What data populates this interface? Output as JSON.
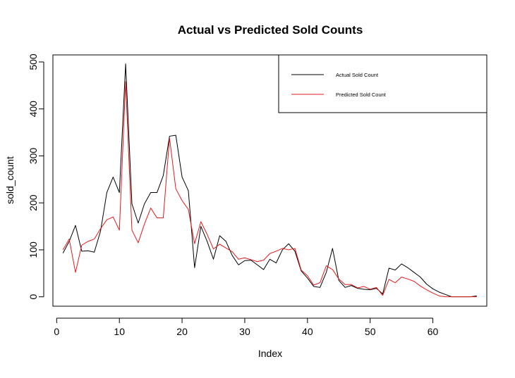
{
  "chart_data": {
    "type": "line",
    "title": "Actual vs Predicted Sold Counts",
    "xlabel": "Index",
    "ylabel": "sold_count",
    "xlim": [
      -0.6,
      68.6
    ],
    "ylim": [
      -20,
      515
    ],
    "xticks": [
      "0",
      "10",
      "20",
      "30",
      "40",
      "50",
      "60"
    ],
    "yticks": [
      "0",
      "100",
      "200",
      "300",
      "400",
      "500"
    ],
    "grid": false,
    "legend_position": "top-right",
    "series": [
      {
        "name": "Actual Sold Count",
        "color": "#000000",
        "x": [
          1,
          2,
          3,
          4,
          5,
          6,
          7,
          8,
          9,
          10,
          11,
          12,
          13,
          14,
          15,
          16,
          17,
          18,
          19,
          20,
          21,
          22,
          23,
          24,
          25,
          26,
          27,
          28,
          29,
          30,
          31,
          32,
          33,
          34,
          35,
          36,
          37,
          38,
          39,
          40,
          41,
          42,
          43,
          44,
          45,
          46,
          47,
          48,
          49,
          50,
          51,
          52,
          53,
          54,
          55,
          56,
          57,
          58,
          59,
          60,
          61,
          62,
          63,
          64,
          65,
          66,
          67
        ],
        "values": [
          93,
          118,
          152,
          97,
          98,
          95,
          140,
          222,
          255,
          222,
          496,
          198,
          157,
          198,
          222,
          222,
          258,
          342,
          344,
          255,
          226,
          62,
          150,
          118,
          80,
          130,
          118,
          88,
          68,
          77,
          78,
          68,
          58,
          80,
          72,
          100,
          113,
          97,
          55,
          40,
          22,
          20,
          52,
          103,
          35,
          20,
          24,
          18,
          16,
          15,
          18,
          6,
          61,
          57,
          70,
          62,
          52,
          42,
          27,
          17,
          10,
          5,
          0,
          0,
          0,
          0,
          2
        ]
      },
      {
        "name": "Predicted Sold Count",
        "color": "#e41a1c",
        "x": [
          1,
          2,
          3,
          4,
          5,
          6,
          7,
          8,
          9,
          10,
          11,
          12,
          13,
          14,
          15,
          16,
          17,
          18,
          19,
          20,
          21,
          22,
          23,
          24,
          25,
          26,
          27,
          28,
          29,
          30,
          31,
          32,
          33,
          34,
          35,
          36,
          37,
          38,
          39,
          40,
          41,
          42,
          43,
          44,
          45,
          46,
          47,
          48,
          49,
          50,
          51,
          52,
          53,
          54,
          55,
          56,
          57,
          58,
          59,
          60,
          61,
          62,
          63,
          64,
          65,
          66,
          67
        ],
        "values": [
          100,
          123,
          52,
          110,
          118,
          123,
          145,
          164,
          170,
          142,
          458,
          142,
          115,
          155,
          189,
          168,
          168,
          338,
          230,
          205,
          186,
          113,
          160,
          133,
          102,
          112,
          104,
          96,
          80,
          83,
          79,
          75,
          78,
          92,
          97,
          103,
          100,
          103,
          57,
          45,
          25,
          30,
          66,
          58,
          38,
          26,
          26,
          19,
          22,
          16,
          20,
          3,
          37,
          30,
          42,
          38,
          33,
          23,
          15,
          8,
          2,
          0,
          0,
          0,
          0,
          0,
          0
        ]
      }
    ]
  }
}
